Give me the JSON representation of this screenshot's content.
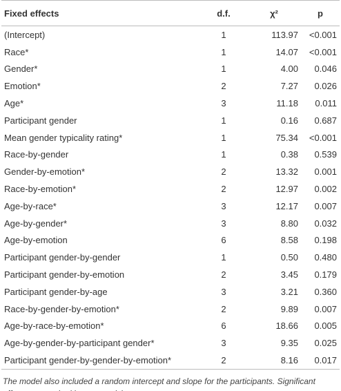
{
  "table": {
    "header": [
      "Fixed effects",
      "d.f.",
      "χ²",
      "p"
    ],
    "rows": [
      [
        "(Intercept)",
        "1",
        "113.97",
        "<0.001"
      ],
      [
        "Race*",
        "1",
        "14.07",
        "<0.001"
      ],
      [
        "Gender*",
        "1",
        "4.00",
        "0.046"
      ],
      [
        "Emotion*",
        "2",
        "7.27",
        "0.026"
      ],
      [
        "Age*",
        "3",
        "11.18",
        "0.011"
      ],
      [
        "Participant gender",
        "1",
        "0.16",
        "0.687"
      ],
      [
        "Mean gender typicality rating*",
        "1",
        "75.34",
        "<0.001"
      ],
      [
        "Race-by-gender",
        "1",
        "0.38",
        "0.539"
      ],
      [
        "Gender-by-emotion*",
        "2",
        "13.32",
        "0.001"
      ],
      [
        "Race-by-emotion*",
        "2",
        "12.97",
        "0.002"
      ],
      [
        "Age-by-race*",
        "3",
        "12.17",
        "0.007"
      ],
      [
        "Age-by-gender*",
        "3",
        "8.80",
        "0.032"
      ],
      [
        "Age-by-emotion",
        "6",
        "8.58",
        "0.198"
      ],
      [
        "Participant gender-by-gender",
        "1",
        "0.50",
        "0.480"
      ],
      [
        "Participant gender-by-emotion",
        "2",
        "3.45",
        "0.179"
      ],
      [
        "Participant gender-by-age",
        "3",
        "3.21",
        "0.360"
      ],
      [
        "Race-by-gender-by-emotion*",
        "2",
        "9.89",
        "0.007"
      ],
      [
        "Age-by-race-by-emotion*",
        "6",
        "18.66",
        "0.005"
      ],
      [
        "Age-by-gender-by-participant gender*",
        "3",
        "9.35",
        "0.025"
      ],
      [
        "Participant gender-by-gender-by-emotion*",
        "2",
        "8.16",
        "0.017"
      ]
    ],
    "footnote": "The model also included a random intercept and slope for the participants. Significant effects are marked by an asterisk."
  }
}
